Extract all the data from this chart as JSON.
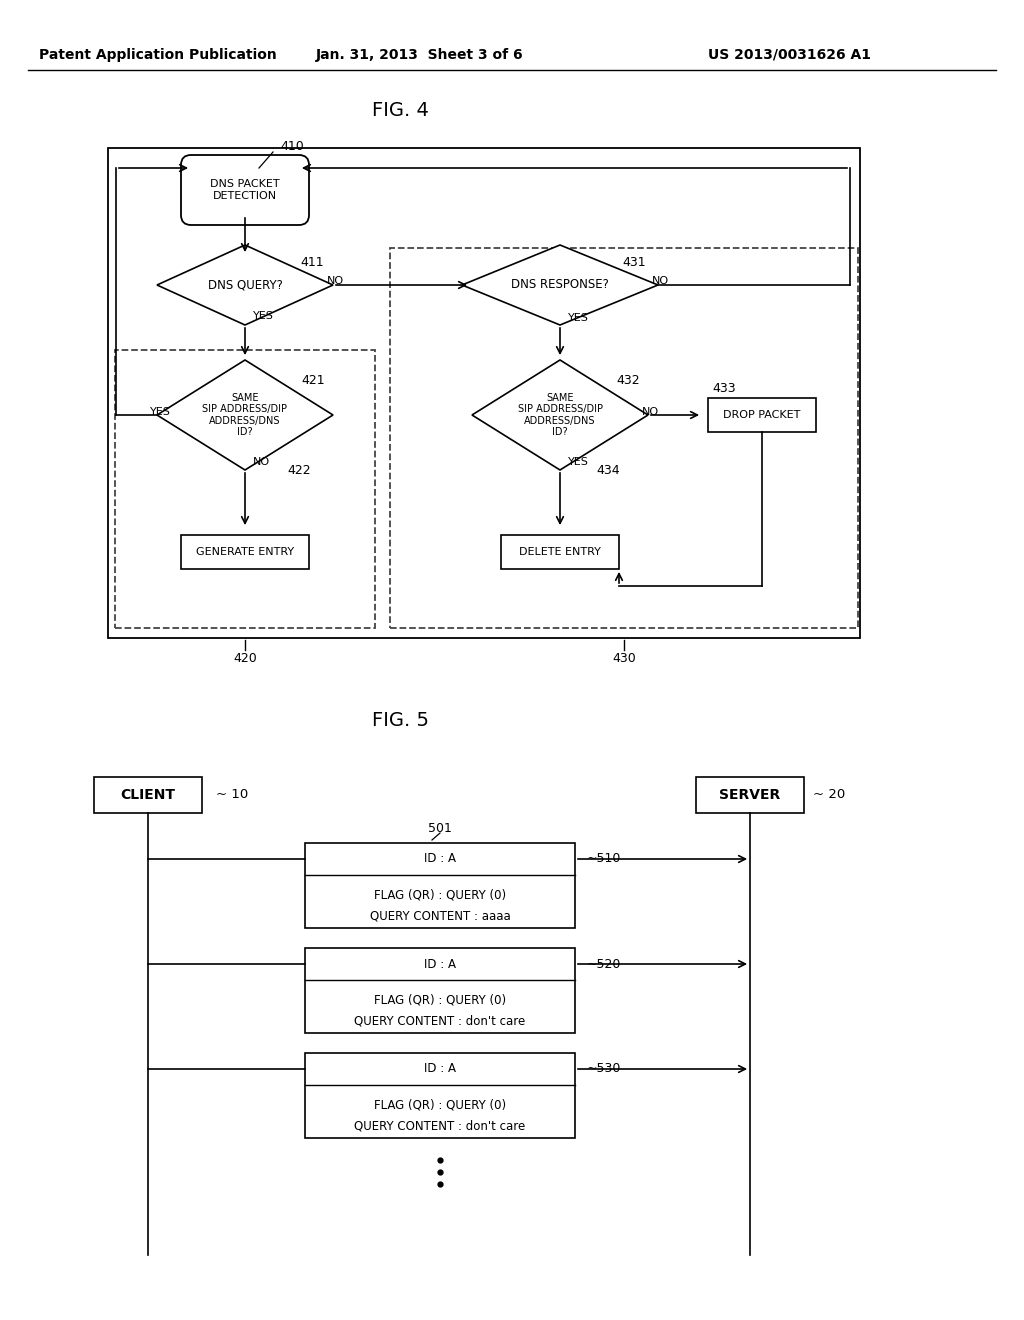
{
  "bg_color": "#ffffff",
  "header_left": "Patent Application Publication",
  "header_mid": "Jan. 31, 2013  Sheet 3 of 6",
  "header_right": "US 2013/0031626 A1",
  "fig4_title": "FIG. 4",
  "fig5_title": "FIG. 5",
  "dns_packet_text": "DNS PACKET\nDETECTION",
  "dns_query_text": "DNS QUERY?",
  "dns_response_text": "DNS RESPONSE?",
  "same_sip_left": "SAME\nSIP ADDRESS/DIP\nADDRESS/DNS\nID?",
  "same_sip_right": "SAME\nSIP ADDRESS/DIP\nADDRESS/DNS\nID?",
  "generate_entry": "GENERATE ENTRY",
  "delete_entry": "DELETE ENTRY",
  "drop_packet": "DROP PACKET",
  "label_410": "410",
  "label_411": "411",
  "label_421": "421",
  "label_422": "422",
  "label_420": "420",
  "label_431": "431",
  "label_432": "432",
  "label_433": "433",
  "label_434": "434",
  "label_430": "430",
  "client_text": "CLIENT",
  "server_text": "SERVER",
  "label_10": "10",
  "label_20": "20",
  "label_501": "501",
  "label_510": "510",
  "label_520": "520",
  "label_530": "530",
  "box1_line1": "ID : A",
  "box1_line2": "FLAG (QR) : QUERY (0)",
  "box1_line3": "QUERY CONTENT : aaaa",
  "box2_line1": "ID : A",
  "box2_line2": "FLAG (QR) : QUERY (0)",
  "box2_line3": "QUERY CONTENT : don't care",
  "box3_line1": "ID : A",
  "box3_line2": "FLAG (QR) : QUERY (0)",
  "box3_line3": "QUERY CONTENT : don't care"
}
